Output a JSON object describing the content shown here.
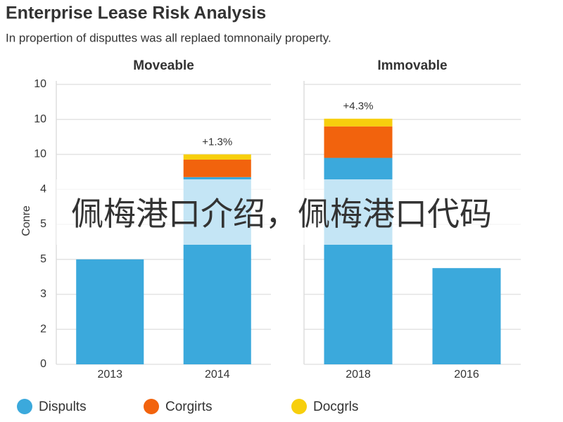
{
  "title": "Enterprise Lease Risk Analysis",
  "subtitle": "In propertion of disputtes was all replaed tomnonaily property.",
  "overlay_text": "佩梅港口介绍，佩梅港口代码",
  "chart_data": [
    {
      "type": "bar",
      "stacked": true,
      "title": "Moveable",
      "title_color": "#3cb832",
      "y_label": "Conre",
      "categories": [
        "2013",
        "2014"
      ],
      "series": [
        {
          "name": "Dispults",
          "color": "#3ba9dc",
          "values": [
            3.0,
            5.35
          ]
        },
        {
          "name": "Corgirts",
          "color": "#f2630d",
          "values": [
            0,
            0.5
          ]
        },
        {
          "name": "Docgrls",
          "color": "#f7cf0d",
          "values": [
            0,
            0.15
          ]
        }
      ],
      "annotations": [
        null,
        "+1.3%"
      ],
      "ylim": [
        0,
        8
      ],
      "yticks": [
        {
          "value": 0,
          "label": "0"
        },
        {
          "value": 1,
          "label": "2"
        },
        {
          "value": 2,
          "label": "3"
        },
        {
          "value": 3,
          "label": "5"
        },
        {
          "value": 4,
          "label": "5"
        },
        {
          "value": 5,
          "label": "4"
        },
        {
          "value": 6,
          "label": "10"
        },
        {
          "value": 7,
          "label": "10"
        },
        {
          "value": 8,
          "label": "10"
        }
      ],
      "grid": true
    },
    {
      "type": "bar",
      "stacked": true,
      "title": "Immovable",
      "title_color": "#e8671c",
      "categories": [
        "2018",
        "2016"
      ],
      "series": [
        {
          "name": "Dispults",
          "color": "#3ba9dc",
          "values": [
            5.9,
            2.75
          ]
        },
        {
          "name": "Corgirts",
          "color": "#f2630d",
          "values": [
            0.9,
            0
          ]
        },
        {
          "name": "Docgrls",
          "color": "#f7cf0d",
          "values": [
            0.22,
            0
          ]
        }
      ],
      "annotations": [
        "+4.3%",
        null
      ],
      "ylim": [
        0,
        8
      ],
      "grid": true
    }
  ]
}
